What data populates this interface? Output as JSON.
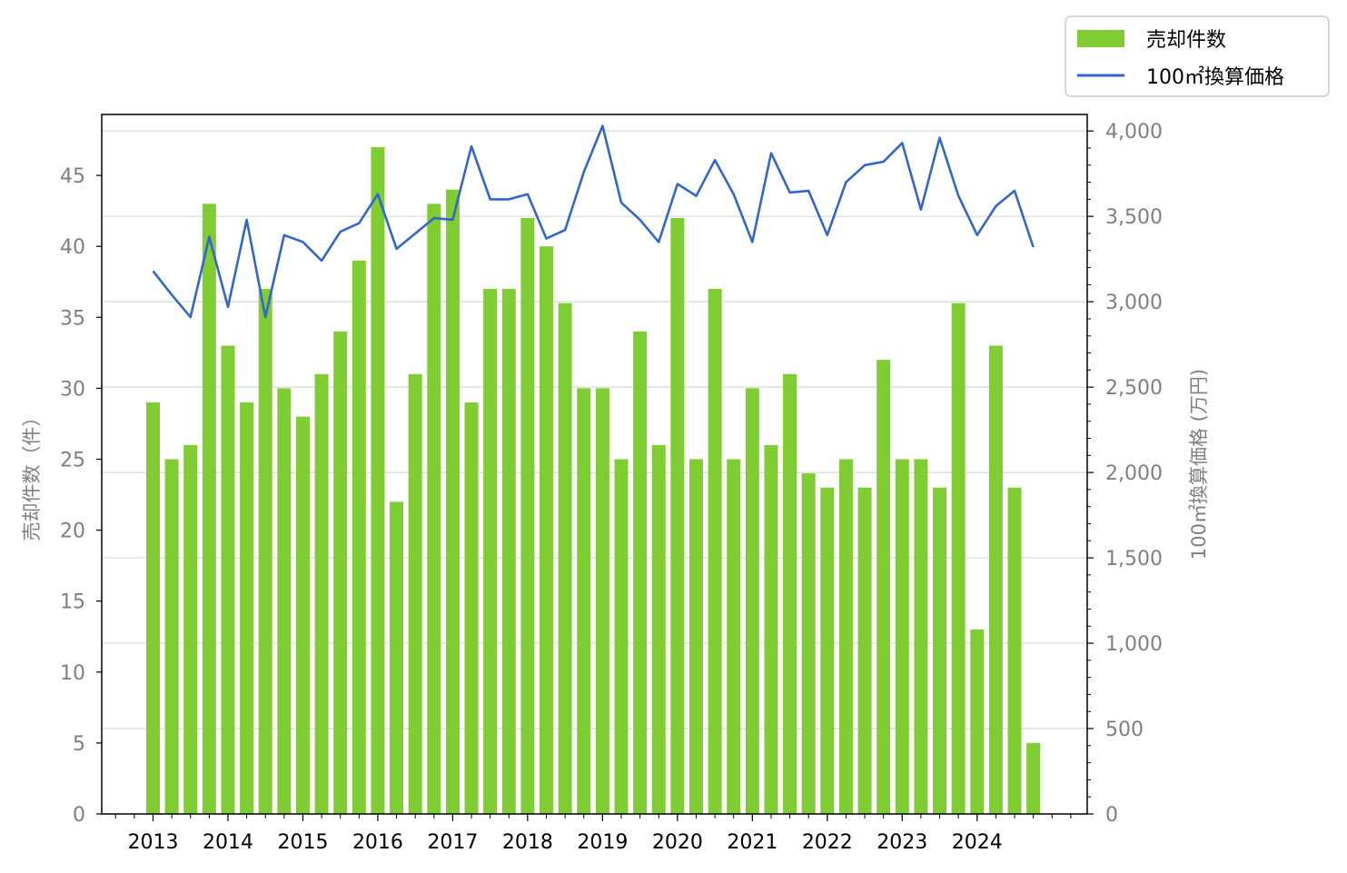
{
  "chart_data": {
    "type": "bar+line",
    "title": "",
    "x_tick_labels": [
      "2013",
      "2014",
      "2015",
      "2016",
      "2017",
      "2018",
      "2019",
      "2020",
      "2021",
      "2022",
      "2023",
      "2024"
    ],
    "ylabel_left": "売却件数（件）",
    "ylabel_right": "100㎡換算価格 (万円)",
    "ylim_left": [
      0,
      49.3
    ],
    "ylim_right": [
      0,
      4080
    ],
    "left_ticks": [
      0,
      5,
      10,
      15,
      20,
      25,
      30,
      35,
      40,
      45
    ],
    "right_ticks": [
      0,
      500,
      1000,
      1500,
      2000,
      2500,
      3000,
      3500,
      4000
    ],
    "right_tick_labels": [
      "0",
      "500",
      "1,000",
      "1,500",
      "2,000",
      "2,500",
      "3,000",
      "3,500",
      "4,000"
    ],
    "grid": "horizontal, right axis",
    "legend_position": "top-right, outside plot",
    "colors": {
      "bar": "#80cc33",
      "line": "#3366cc"
    },
    "series": [
      {
        "name": "売却件数",
        "type": "bar",
        "axis": "left",
        "values": [
          29,
          25,
          26,
          43,
          33,
          29,
          37,
          30,
          28,
          31,
          34,
          39,
          47,
          22,
          31,
          43,
          44,
          29,
          37,
          37,
          42,
          40,
          36,
          30,
          30,
          25,
          34,
          26,
          42,
          25,
          37,
          25,
          30,
          26,
          31,
          24,
          23,
          25,
          23,
          32,
          25,
          25,
          23,
          36,
          13,
          33,
          23,
          5
        ]
      },
      {
        "name": "100㎡換算価格",
        "type": "line",
        "axis": "right",
        "values": [
          3180,
          3040,
          2910,
          3380,
          2970,
          3480,
          2910,
          3390,
          3350,
          3240,
          3410,
          3460,
          3630,
          3310,
          3400,
          3490,
          3480,
          3910,
          3600,
          3600,
          3630,
          3370,
          3420,
          3760,
          4030,
          3580,
          3480,
          3350,
          3690,
          3620,
          3830,
          3630,
          3350,
          3870,
          3640,
          3650,
          3390,
          3700,
          3800,
          3820,
          3930,
          3540,
          3960,
          3620,
          3390,
          3560,
          3650,
          3320
        ]
      }
    ]
  }
}
